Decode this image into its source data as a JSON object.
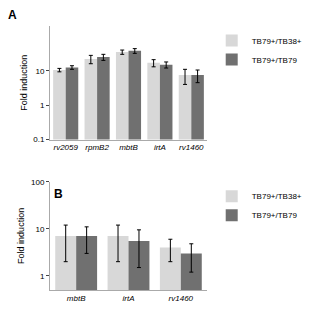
{
  "chart_data": [
    {
      "type": "bar",
      "categories": [
        "rv2059",
        "rpmB2",
        "mbtB",
        "irtA",
        "rv1460"
      ],
      "series": [
        {
          "name": "TB79+/TB38+",
          "color": "#d8d8d8",
          "values": [
            10.5,
            22.0,
            35.0,
            17.0,
            7.5
          ],
          "errors": [
            1.2,
            6.0,
            5.0,
            4.0,
            3.5
          ]
        },
        {
          "name": "TB79+/TB79",
          "color": "#707070",
          "values": [
            12.5,
            25.0,
            38.0,
            15.0,
            7.5
          ],
          "errors": [
            1.5,
            5.0,
            6.0,
            3.0,
            3.0
          ]
        }
      ],
      "ylabel": "Fold induction",
      "ylim": [
        0.1,
        200
      ],
      "yticks": [
        0.1,
        1,
        10
      ],
      "log": "y",
      "grid": false,
      "legend": "right",
      "annotations": [
        "A"
      ]
    },
    {
      "type": "bar",
      "categories": [
        "mbtB",
        "irtA",
        "rv1460"
      ],
      "series": [
        {
          "name": "TB79+/TB38+",
          "color": "#d8d8d8",
          "values": [
            7.0,
            7.0,
            4.0
          ],
          "errors": [
            5.0,
            5.0,
            2.0
          ]
        },
        {
          "name": "TB79+/TB79",
          "color": "#707070",
          "values": [
            7.0,
            5.5,
            3.0
          ],
          "errors": [
            4.0,
            4.0,
            1.8
          ]
        }
      ],
      "ylabel": "Fold induction",
      "ylim": [
        0.5,
        100
      ],
      "yticks": [
        1,
        10,
        100
      ],
      "log": "y",
      "grid": false,
      "legend": "right",
      "annotations": [
        "B"
      ]
    }
  ]
}
